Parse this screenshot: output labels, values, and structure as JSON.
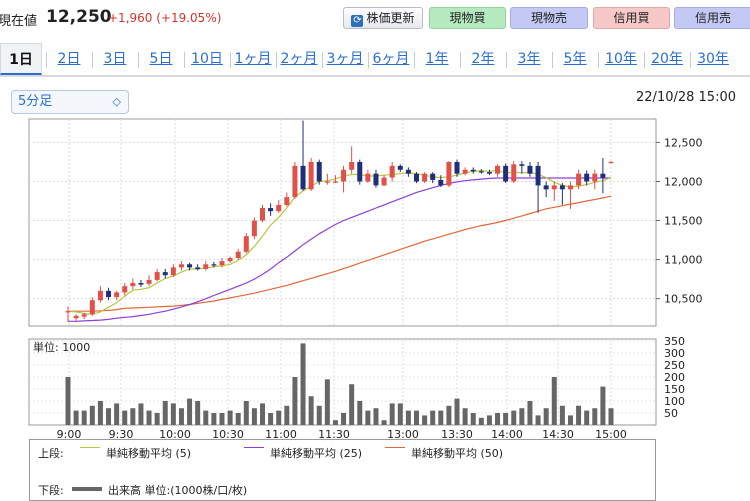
{
  "quote": {
    "label": "現在値",
    "price": "12,250",
    "change": "+1,960 (+19.05%)"
  },
  "buttons": {
    "refresh": "株価更新",
    "cash_buy": "現物買",
    "cash_sell": "現物売",
    "margin_buy": "信用買",
    "margin_sell": "信用売"
  },
  "tabs": [
    "1日",
    "2日",
    "3日",
    "5日",
    "10日",
    "1ヶ月",
    "2ヶ月",
    "3ヶ月",
    "6ヶ月",
    "1年",
    "2年",
    "3年",
    "5年",
    "10年",
    "20年",
    "30年"
  ],
  "active_tab": "1日",
  "interval": {
    "selected": "5分足"
  },
  "timestamp": "22/10/28 15:00",
  "volume_unit_label": "単位: 1000",
  "legend": {
    "upper_label": "上段:",
    "lower_label": "下段:",
    "ma5": "単純移動平均 (5)",
    "ma25": "単純移動平均 (25)",
    "ma50": "単純移動平均 (50)",
    "volume": "出来高 単位:(1000株/口/枚)"
  },
  "colors": {
    "up": "#e0514a",
    "down": "#1f2f7a",
    "ma5": "#b9c640",
    "ma25": "#8d3fd6",
    "ma50": "#e0683a",
    "volume": "#666666"
  },
  "chart_data": {
    "type": "candlestick",
    "interval": "5分足",
    "price_axis": {
      "ticks": [
        "12,500",
        "12,000",
        "11,500",
        "11,000",
        "10,500"
      ],
      "ylim": [
        10150,
        12800
      ]
    },
    "volume_axis": {
      "ticks": [
        "350",
        "300",
        "250",
        "200",
        "150",
        "100",
        "50"
      ],
      "ylim": [
        0,
        350
      ]
    },
    "time_axis": {
      "labels": [
        "9:00",
        "9:30",
        "10:00",
        "10:30",
        "11:00",
        "11:30",
        "13:00",
        "13:30",
        "14:00",
        "14:30",
        "15:00"
      ]
    },
    "candles": [
      [
        10340,
        10340,
        10400,
        10200
      ],
      [
        10250,
        10280,
        10300,
        10200
      ],
      [
        10270,
        10300,
        10320,
        10240
      ],
      [
        10300,
        10480,
        10520,
        10280
      ],
      [
        10480,
        10600,
        10660,
        10450
      ],
      [
        10600,
        10520,
        10640,
        10480
      ],
      [
        10520,
        10580,
        10600,
        10480
      ],
      [
        10580,
        10660,
        10700,
        10540
      ],
      [
        10660,
        10700,
        10760,
        10620
      ],
      [
        10700,
        10680,
        10740,
        10650
      ],
      [
        10690,
        10740,
        10800,
        10660
      ],
      [
        10740,
        10840,
        10880,
        10720
      ],
      [
        10840,
        10800,
        10880,
        10760
      ],
      [
        10800,
        10900,
        10940,
        10780
      ],
      [
        10900,
        10940,
        10980,
        10860
      ],
      [
        10940,
        10900,
        10960,
        10860
      ],
      [
        10900,
        10880,
        10940,
        10860
      ],
      [
        10880,
        10940,
        10980,
        10860
      ],
      [
        10940,
        10930,
        10970,
        10900
      ],
      [
        10930,
        10980,
        11020,
        10900
      ],
      [
        10980,
        11020,
        11040,
        10960
      ],
      [
        11020,
        11100,
        11140,
        11000
      ],
      [
        11100,
        11300,
        11340,
        11080
      ],
      [
        11300,
        11500,
        11540,
        11260
      ],
      [
        11500,
        11660,
        11700,
        11480
      ],
      [
        11660,
        11620,
        11720,
        11560
      ],
      [
        11620,
        11700,
        11760,
        11600
      ],
      [
        11700,
        11800,
        11860,
        11680
      ],
      [
        11800,
        12200,
        12250,
        11780
      ],
      [
        12200,
        11900,
        12780,
        11880
      ],
      [
        11900,
        12250,
        12300,
        11880
      ],
      [
        12250,
        12000,
        12280,
        11960
      ],
      [
        12000,
        12000,
        12100,
        11960
      ],
      [
        12000,
        12000,
        12080,
        11980
      ],
      [
        12000,
        12150,
        12200,
        11860
      ],
      [
        12150,
        12250,
        12450,
        12100
      ],
      [
        12250,
        12000,
        12280,
        11960
      ],
      [
        12000,
        12100,
        12150,
        11980
      ],
      [
        12100,
        11950,
        12150,
        11920
      ],
      [
        11950,
        12050,
        12080,
        11940
      ],
      [
        12050,
        12200,
        12250,
        12000
      ],
      [
        12200,
        12150,
        12220,
        12120
      ],
      [
        12150,
        12100,
        12180,
        12060
      ],
      [
        12100,
        12000,
        12120,
        11980
      ],
      [
        12000,
        12100,
        12120,
        11980
      ],
      [
        12100,
        12020,
        12120,
        11980
      ],
      [
        12020,
        11950,
        12080,
        11930
      ],
      [
        11950,
        12250,
        12260,
        11930
      ],
      [
        12250,
        12100,
        12280,
        12060
      ],
      [
        12100,
        12150,
        12180,
        12080
      ],
      [
        12150,
        12130,
        12180,
        12100
      ],
      [
        12130,
        12120,
        12160,
        12100
      ],
      [
        12120,
        12100,
        12150,
        12080
      ],
      [
        12100,
        12200,
        12220,
        12060
      ],
      [
        12200,
        12000,
        12230,
        11980
      ],
      [
        12000,
        12220,
        12260,
        11980
      ],
      [
        12220,
        12200,
        12260,
        12100
      ],
      [
        12200,
        12100,
        12250,
        12060
      ],
      [
        12200,
        11950,
        12250,
        11600
      ],
      [
        11950,
        11900,
        12000,
        11800
      ],
      [
        11900,
        11950,
        12000,
        11750
      ],
      [
        11950,
        11900,
        11980,
        11700
      ],
      [
        11900,
        11950,
        12000,
        11650
      ],
      [
        11950,
        12100,
        12150,
        11900
      ],
      [
        12100,
        12000,
        12140,
        11950
      ],
      [
        12000,
        12100,
        12150,
        11900
      ],
      [
        12100,
        12050,
        12300,
        11850
      ],
      [
        12250,
        12250,
        12260,
        12240
      ]
    ],
    "volume": [
      200,
      60,
      60,
      80,
      100,
      70,
      90,
      60,
      70,
      90,
      60,
      50,
      100,
      90,
      70,
      110,
      100,
      60,
      50,
      50,
      60,
      50,
      100,
      70,
      90,
      50,
      60,
      80,
      200,
      340,
      120,
      80,
      190,
      20,
      50,
      170,
      100,
      60,
      70,
      20,
      90,
      90,
      60,
      60,
      40,
      60,
      60,
      80,
      110,
      70,
      50,
      30,
      40,
      50,
      50,
      60,
      70,
      100,
      40,
      70,
      200,
      80,
      40,
      80,
      60,
      70,
      160,
      70
    ],
    "ma5": [
      10340,
      10330,
      10310,
      10300,
      10330,
      10390,
      10450,
      10530,
      10610,
      10620,
      10640,
      10700,
      10760,
      10790,
      10840,
      10880,
      10880,
      10890,
      10910,
      10920,
      10940,
      10990,
      11060,
      11170,
      11300,
      11440,
      11540,
      11660,
      11800,
      11880,
      11940,
      12000,
      12010,
      12030,
      12070,
      12090,
      12090,
      12070,
      12070,
      12080,
      12090,
      12100,
      12110,
      12100,
      12080,
      12060,
      12050,
      12060,
      12080,
      12110,
      12130,
      12140,
      12130,
      12140,
      12110,
      12120,
      12110,
      12120,
      12090,
      12050,
      11990,
      11950,
      11930,
      11940,
      11960,
      11990,
      12010,
      12050
    ],
    "ma25": [
      10210,
      10210,
      10215,
      10220,
      10225,
      10235,
      10250,
      10260,
      10270,
      10285,
      10300,
      10320,
      10340,
      10365,
      10395,
      10425,
      10460,
      10500,
      10540,
      10580,
      10620,
      10660,
      10700,
      10750,
      10810,
      10880,
      10960,
      11030,
      11110,
      11190,
      11260,
      11330,
      11390,
      11450,
      11500,
      11540,
      11580,
      11620,
      11660,
      11700,
      11740,
      11780,
      11820,
      11860,
      11890,
      11920,
      11950,
      11975,
      11995,
      12010,
      12020,
      12030,
      12040,
      12045,
      12045,
      12045,
      12045,
      12045,
      12045,
      12045,
      12045,
      12045,
      12045,
      12045,
      12045,
      12045,
      12045,
      12045
    ],
    "ma50": [
      10340,
      10340,
      10340,
      10340,
      10345,
      10350,
      10360,
      10375,
      10380,
      10385,
      10390,
      10395,
      10400,
      10405,
      10415,
      10425,
      10440,
      10455,
      10470,
      10490,
      10510,
      10530,
      10550,
      10570,
      10595,
      10620,
      10645,
      10670,
      10700,
      10730,
      10760,
      10790,
      10820,
      10850,
      10885,
      10920,
      10955,
      10990,
      11025,
      11060,
      11095,
      11130,
      11165,
      11200,
      11235,
      11265,
      11295,
      11325,
      11355,
      11385,
      11410,
      11435,
      11455,
      11475,
      11500,
      11530,
      11560,
      11590,
      11620,
      11650,
      11670,
      11690,
      11710,
      11730,
      11750,
      11770,
      11790,
      11810
    ]
  }
}
